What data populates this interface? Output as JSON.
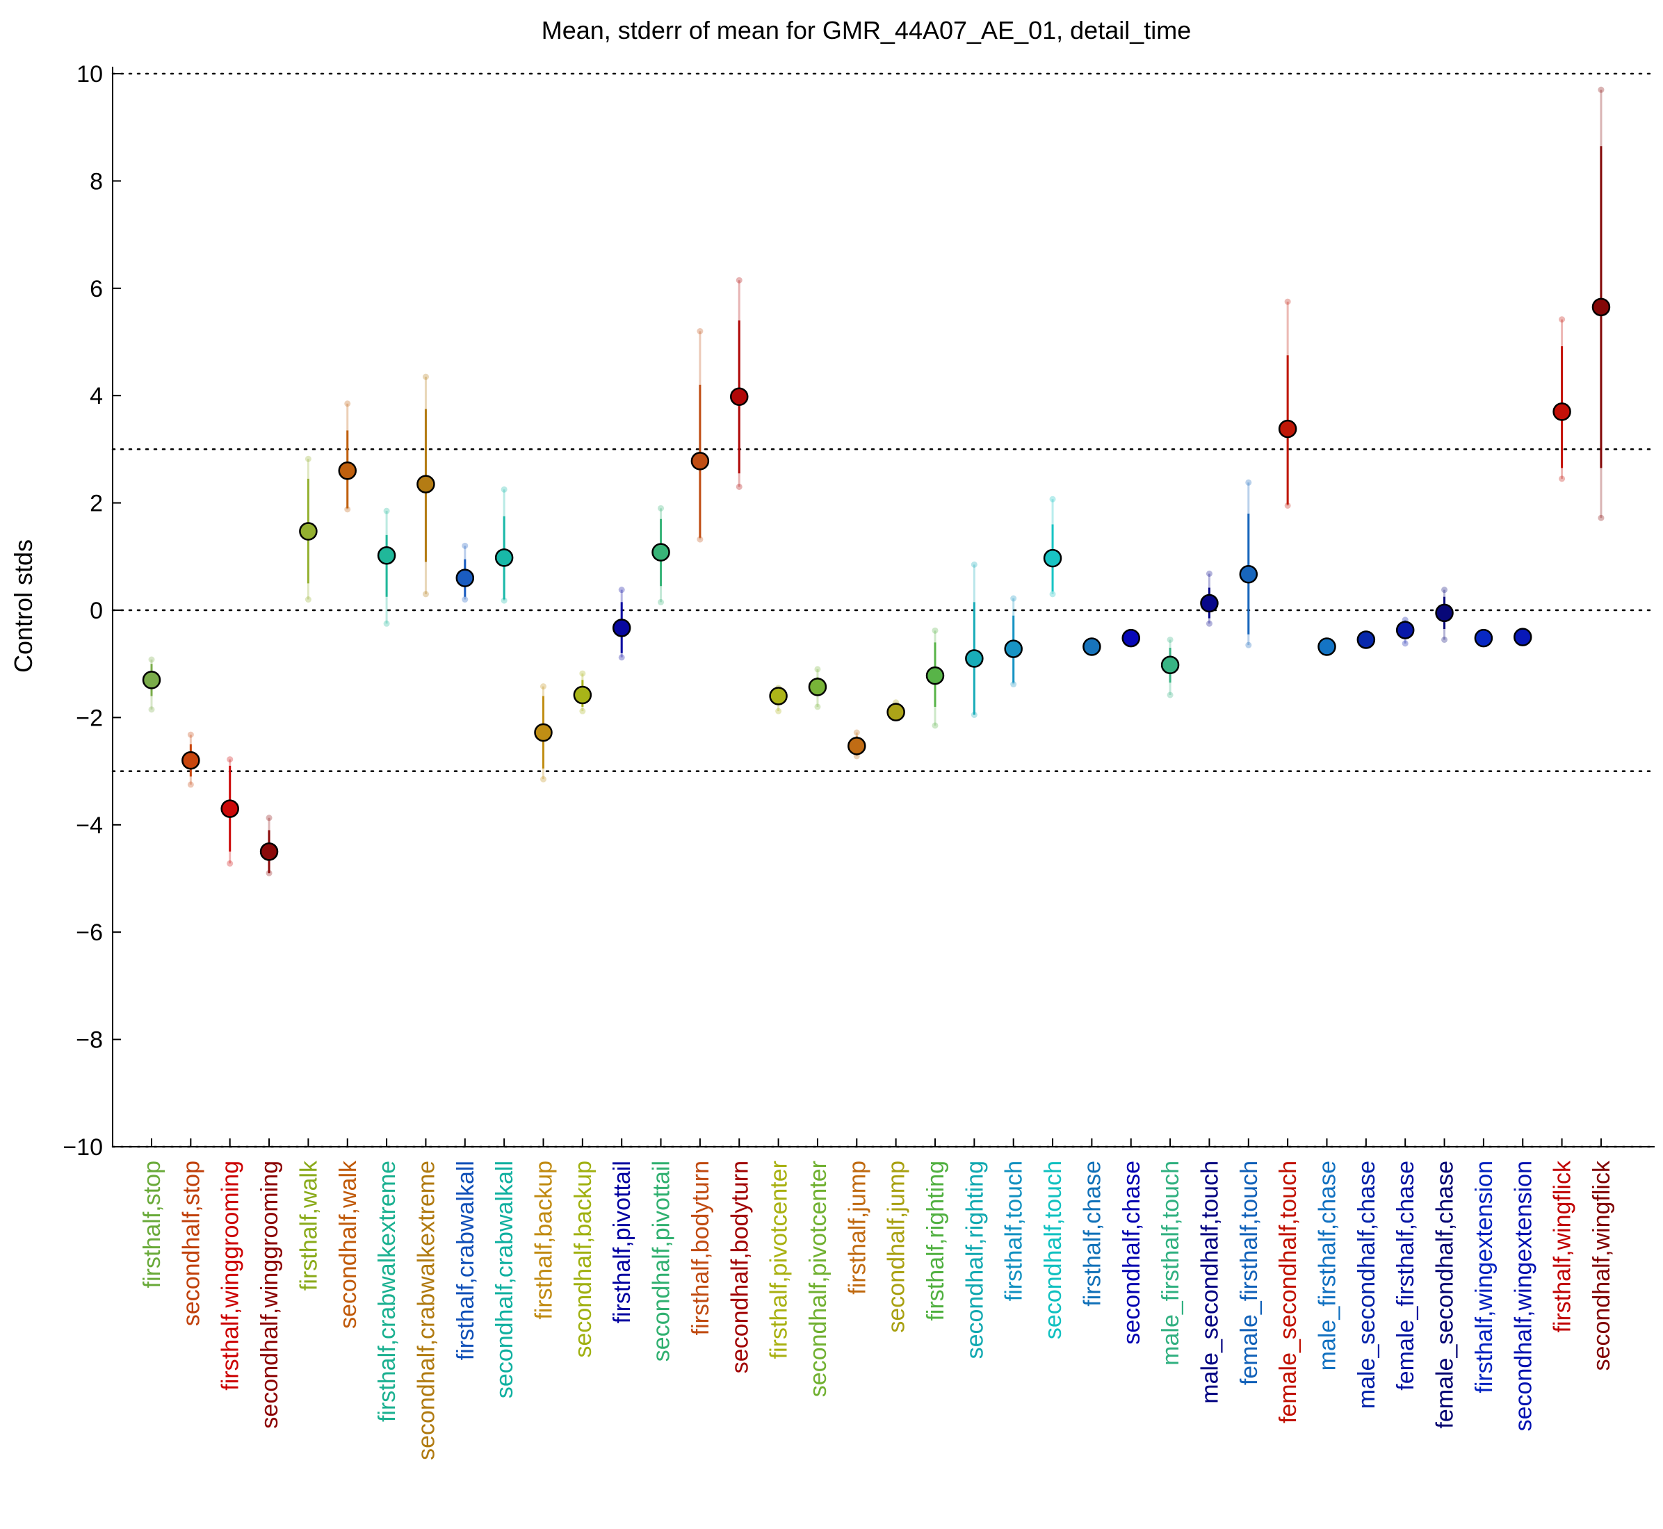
{
  "chart_data": {
    "type": "scatter",
    "title": "Mean, stderr of mean for GMR_44A07_AE_01, detail_time",
    "xlabel": "",
    "ylabel": "Control stds",
    "ylim": [
      -10,
      10
    ],
    "yticks": [
      -10,
      -8,
      -6,
      -4,
      -2,
      0,
      2,
      4,
      6,
      8,
      10
    ],
    "ytick_labels": [
      "−10",
      "−8",
      "−6",
      "−4",
      "−2",
      "0",
      "2",
      "4",
      "6",
      "8",
      "10"
    ],
    "reference_lines": [
      -10,
      -3,
      0,
      3,
      10
    ],
    "grid": false,
    "categories": [
      "firsthalf,stop",
      "secondhalf,stop",
      "firsthalf,winggrooming",
      "secondhalf,winggrooming",
      "firsthalf,walk",
      "secondhalf,walk",
      "firsthalf,crabwalkextreme",
      "secondhalf,crabwalkextreme",
      "firsthalf,crabwalkall",
      "secondhalf,crabwalkall",
      "firsthalf,backup",
      "secondhalf,backup",
      "firsthalf,pivottail",
      "secondhalf,pivottail",
      "firsthalf,bodyturn",
      "secondhalf,bodyturn",
      "firsthalf,pivotcenter",
      "secondhalf,pivotcenter",
      "firsthalf,jump",
      "secondhalf,jump",
      "firsthalf,righting",
      "secondhalf,righting",
      "firsthalf,touch",
      "secondhalf,touch",
      "firsthalf,chase",
      "secondhalf,chase",
      "male_firsthalf,touch",
      "male_secondhalf,touch",
      "female_firsthalf,touch",
      "female_secondhalf,touch",
      "male_firsthalf,chase",
      "male_secondhalf,chase",
      "female_firsthalf,chase",
      "female_secondhalf,chase",
      "firsthalf,wingextension",
      "secondhalf,wingextension",
      "firsthalf,wingflick",
      "secondhalf,wingflick"
    ],
    "label_colors": [
      "#6aaa3a",
      "#c0400a",
      "#cc0000",
      "#8b0000",
      "#8aaa1a",
      "#c05a0a",
      "#1ab090",
      "#b07a10",
      "#1050b8",
      "#10b0a0",
      "#c08a10",
      "#a0b010",
      "#0000a0",
      "#30b070",
      "#c04a10",
      "#a00000",
      "#a8b010",
      "#70b030",
      "#c06a10",
      "#a8a010",
      "#50b040",
      "#10a8b0",
      "#1090c0",
      "#10c0c0",
      "#1070b8",
      "#0000b0",
      "#30b080",
      "#000080",
      "#1060b8",
      "#c01000",
      "#1070c0",
      "#0020a8",
      "#0010a0",
      "#000070",
      "#0020c0",
      "#0010b0",
      "#c00000",
      "#800000"
    ],
    "series": [
      {
        "mean": [
          -1.3,
          -2.8,
          -3.7,
          -4.5,
          1.47,
          2.6,
          1.02,
          2.35,
          0.6,
          0.98,
          -2.28,
          -1.58,
          -0.33,
          1.08,
          2.78,
          3.98,
          -1.6,
          -1.43,
          -2.53,
          -1.9,
          -1.22,
          -0.9,
          -0.72,
          0.97,
          -0.68,
          -0.52,
          -1.02,
          0.13,
          0.67,
          3.38,
          -0.68,
          -0.55,
          -0.37,
          -0.05,
          -0.52,
          -0.5,
          3.7,
          5.65
        ],
        "err_low": [
          -1.6,
          -3.1,
          -4.5,
          -4.9,
          0.5,
          1.9,
          0.25,
          0.9,
          0.25,
          0.2,
          -2.95,
          -1.8,
          -0.8,
          0.45,
          1.35,
          2.55,
          -1.75,
          -1.6,
          -2.7,
          -2.0,
          -1.8,
          -1.95,
          -1.35,
          0.35,
          -0.78,
          -0.62,
          -1.35,
          -0.15,
          -0.45,
          1.97,
          -0.78,
          -0.65,
          -0.5,
          -0.35,
          -0.62,
          -0.58,
          2.65,
          2.65
        ],
        "err_high": [
          -1.0,
          -2.5,
          -2.9,
          -4.1,
          2.45,
          3.35,
          1.4,
          3.75,
          0.95,
          1.75,
          -1.6,
          -1.3,
          0.15,
          1.7,
          4.2,
          5.4,
          -1.45,
          -1.25,
          -2.35,
          -1.8,
          -0.6,
          0.15,
          -0.1,
          1.6,
          -0.58,
          -0.42,
          -0.7,
          0.42,
          1.8,
          4.75,
          -0.58,
          -0.45,
          -0.25,
          0.25,
          -0.42,
          -0.42,
          4.92,
          8.65
        ],
        "samples_min": [
          -1.85,
          -3.25,
          -4.72,
          -4.9,
          0.2,
          1.88,
          -0.25,
          0.3,
          0.2,
          0.18,
          -3.15,
          -1.88,
          -0.88,
          0.15,
          1.32,
          2.3,
          -1.88,
          -1.8,
          -2.72,
          -2.0,
          -2.15,
          -1.95,
          -1.38,
          0.3,
          -0.78,
          -0.62,
          -1.58,
          -0.25,
          -0.65,
          1.95,
          -0.78,
          -0.65,
          -0.62,
          -0.55,
          -0.62,
          -0.58,
          2.45,
          1.72
        ],
        "samples_max": [
          -0.92,
          -2.32,
          -2.78,
          -3.87,
          2.82,
          3.85,
          1.85,
          4.35,
          1.2,
          2.25,
          -1.42,
          -1.18,
          0.38,
          1.9,
          5.2,
          6.15,
          -1.45,
          -1.1,
          -2.28,
          -1.72,
          -0.38,
          0.85,
          0.22,
          2.07,
          -0.58,
          -0.42,
          -0.55,
          0.68,
          2.38,
          5.75,
          -0.58,
          -0.45,
          -0.18,
          0.38,
          -0.42,
          -0.42,
          5.42,
          9.7
        ],
        "colors": [
          "#7aac4a",
          "#c8460e",
          "#cc0a0a",
          "#8b0a0a",
          "#94b030",
          "#c0600e",
          "#20b89a",
          "#b47c14",
          "#1a5cc0",
          "#18b8a8",
          "#c08e14",
          "#a8b418",
          "#0808a0",
          "#38b478",
          "#c04e14",
          "#b00808",
          "#acb418",
          "#78b438",
          "#c06c14",
          "#aca418",
          "#58b448",
          "#18acb8",
          "#1894c4",
          "#18c4c4",
          "#1874bc",
          "#0808b8",
          "#38b484",
          "#08088a",
          "#1866bc",
          "#c01808",
          "#1474c4",
          "#0828ac",
          "#0818a8",
          "#080878",
          "#0828c4",
          "#0818b8",
          "#c41008",
          "#840808"
        ]
      }
    ]
  }
}
